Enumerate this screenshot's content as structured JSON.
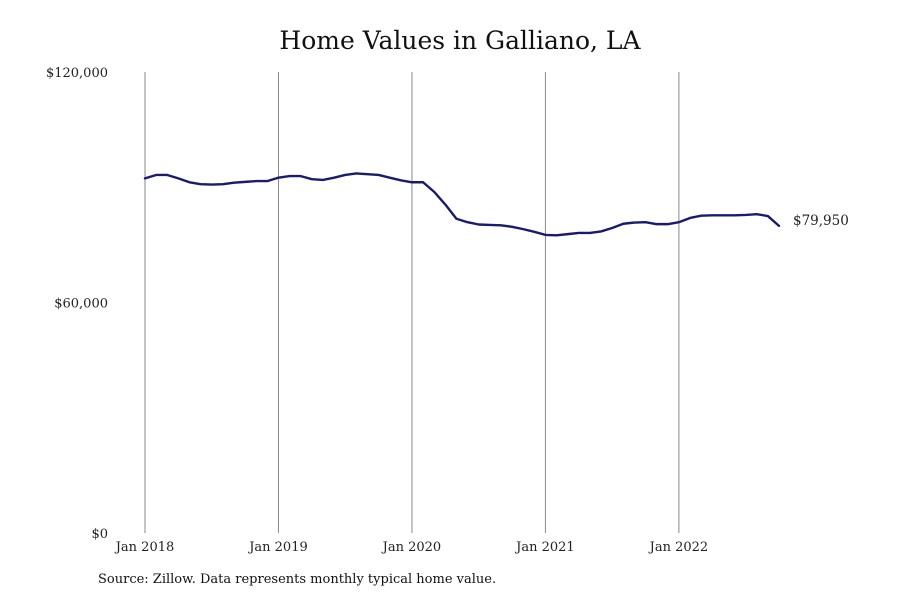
{
  "chart_data": {
    "type": "line",
    "title": "Home Values in Galliano, LA",
    "source": "Source: Zillow. Data represents monthly typical home value.",
    "xlabel": "",
    "ylabel": "",
    "y_ticks": [
      {
        "value": 0,
        "label": "$0"
      },
      {
        "value": 60000,
        "label": "$60,000"
      },
      {
        "value": 120000,
        "label": "$120,000"
      }
    ],
    "x_ticks": [
      {
        "value": "2018-01",
        "label": "Jan 2018"
      },
      {
        "value": "2019-01",
        "label": "Jan 2019"
      },
      {
        "value": "2020-01",
        "label": "Jan 2020"
      },
      {
        "value": "2021-01",
        "label": "Jan 2021"
      },
      {
        "value": "2022-01",
        "label": "Jan 2022"
      }
    ],
    "ylim": [
      0,
      120000
    ],
    "xlim": [
      "2018-01",
      "2022-10"
    ],
    "grid": "vertical lines at year ticks",
    "series_color": "#1a1a6e",
    "end_label": "$79,950",
    "series": [
      {
        "x": [
          "2018-01",
          "2018-02",
          "2018-03",
          "2018-04",
          "2018-05",
          "2018-06",
          "2018-07",
          "2018-08",
          "2018-09",
          "2018-10",
          "2018-11",
          "2018-12",
          "2019-01",
          "2019-02",
          "2019-03",
          "2019-04",
          "2019-05",
          "2019-06",
          "2019-07",
          "2019-08",
          "2019-09",
          "2019-10",
          "2019-11",
          "2019-12",
          "2020-01",
          "2020-02",
          "2020-03",
          "2020-04",
          "2020-05",
          "2020-06",
          "2020-07",
          "2020-08",
          "2020-09",
          "2020-10",
          "2020-11",
          "2020-12",
          "2021-01",
          "2021-02",
          "2021-03",
          "2021-04",
          "2021-05",
          "2021-06",
          "2021-07",
          "2021-08",
          "2021-09",
          "2021-10",
          "2021-11",
          "2021-12",
          "2022-01",
          "2022-02",
          "2022-03",
          "2022-04",
          "2022-05",
          "2022-06",
          "2022-07",
          "2022-08",
          "2022-09",
          "2022-10"
        ],
        "values": [
          92300,
          93200,
          93200,
          92300,
          91300,
          90800,
          90700,
          90800,
          91200,
          91400,
          91600,
          91600,
          92500,
          92900,
          92900,
          92100,
          91900,
          92500,
          93200,
          93600,
          93400,
          93200,
          92500,
          91800,
          91300,
          91300,
          88800,
          85500,
          81800,
          80900,
          80300,
          80200,
          80100,
          79700,
          79100,
          78400,
          77600,
          77500,
          77800,
          78100,
          78100,
          78500,
          79400,
          80500,
          80800,
          80900,
          80400,
          80400,
          80900,
          82000,
          82600,
          82700,
          82700,
          82700,
          82800,
          83000,
          82500,
          79950
        ]
      }
    ]
  }
}
